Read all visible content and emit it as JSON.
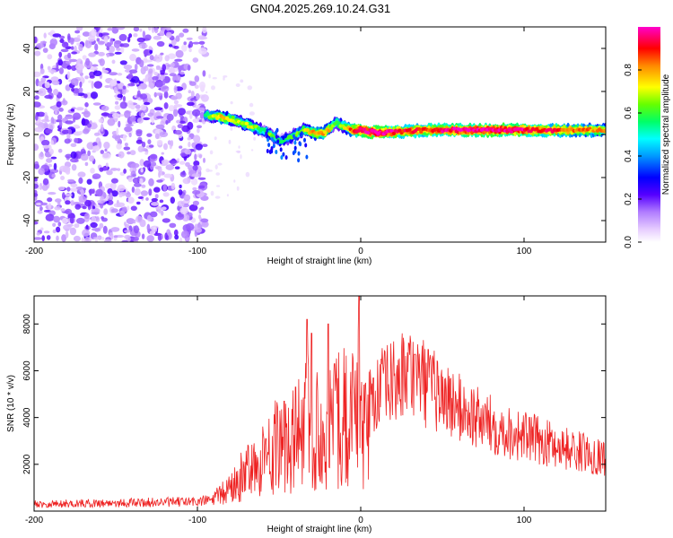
{
  "figure": {
    "title": "GN04.2025.269.10.24.G31"
  },
  "colorbar": {
    "label": "Normalized spectral amplitude",
    "ticks": [
      "0.0",
      "0.2",
      "0.4",
      "0.6",
      "0.8"
    ],
    "tick_values": [
      0.0,
      0.2,
      0.4,
      0.6,
      0.8
    ],
    "range": [
      0.0,
      1.0
    ],
    "colors": [
      "#ffffff",
      "#e6ccff",
      "#b07cff",
      "#7a1fff",
      "#3300ff",
      "#0000ff",
      "#0099ff",
      "#00ffff",
      "#00ff66",
      "#66ff00",
      "#ffff00",
      "#ff8800",
      "#ff0000",
      "#ff00cc"
    ]
  },
  "chart_data": [
    {
      "type": "heatmap",
      "title": "GN04.2025.269.10.24.G31",
      "xlabel": "Height of straight line (km)",
      "ylabel": "Frequency (Hz)",
      "xlim": [
        -200,
        150
      ],
      "ylim": [
        -50,
        50
      ],
      "xticks": [
        "-200",
        "-100",
        "0",
        "100"
      ],
      "xtick_values": [
        -200,
        -100,
        0,
        100
      ],
      "yticks": [
        "-40",
        "-20",
        "0",
        "20",
        "40"
      ],
      "ytick_values": [
        -40,
        -20,
        0,
        20,
        40
      ],
      "noise_region_x": [
        -200,
        -95
      ],
      "ridge": {
        "x": [
          -95,
          -85,
          -75,
          -68,
          -60,
          -55,
          -50,
          -45,
          -40,
          -35,
          -30,
          -25,
          -20,
          -15,
          -12,
          -8,
          -5,
          0,
          10,
          20,
          40,
          60,
          80,
          100,
          120,
          150
        ],
        "freq": [
          9,
          8,
          6,
          4,
          2,
          0,
          -3,
          -2,
          0,
          2,
          1,
          0,
          2,
          6,
          4,
          3,
          2,
          2,
          1,
          1,
          2,
          2,
          2,
          2,
          2,
          2
        ],
        "amplitude": [
          0.5,
          0.7,
          0.6,
          0.65,
          0.5,
          0.55,
          0.45,
          0.5,
          0.55,
          0.6,
          0.7,
          0.75,
          0.7,
          0.5,
          0.6,
          0.7,
          0.8,
          0.9,
          0.95,
          0.85,
          0.8,
          0.9,
          0.92,
          0.88,
          0.8,
          0.7
        ]
      }
    },
    {
      "type": "line",
      "color": "#ee2222",
      "xlabel": "Height of straight line (km)",
      "ylabel": "SNR (10 * v/v)",
      "xlim": [
        -200,
        150
      ],
      "ylim": [
        0,
        9200
      ],
      "xticks": [
        "-200",
        "-100",
        "0",
        "100"
      ],
      "xtick_values": [
        -200,
        -100,
        0,
        100
      ],
      "yticks": [
        "2000",
        "4000",
        "6000",
        "8000"
      ],
      "ytick_values": [
        2000,
        4000,
        6000,
        8000
      ],
      "envelope": {
        "x": [
          -200,
          -150,
          -100,
          -90,
          -85,
          -80,
          -75,
          -70,
          -65,
          -60,
          -55,
          -50,
          -45,
          -40,
          -35,
          -30,
          -25,
          -20,
          -15,
          -10,
          -5,
          -2,
          0,
          5,
          10,
          15,
          20,
          25,
          30,
          35,
          40,
          50,
          60,
          70,
          80,
          90,
          100,
          110,
          120,
          130,
          140,
          150
        ],
        "y": [
          300,
          350,
          400,
          500,
          700,
          1000,
          1300,
          1700,
          2000,
          2300,
          2600,
          2800,
          3000,
          3200,
          3400,
          3600,
          3700,
          3800,
          3900,
          4000,
          4100,
          4200,
          4300,
          4700,
          5000,
          5300,
          5500,
          5700,
          5900,
          5800,
          5400,
          4900,
          4400,
          4000,
          3700,
          3400,
          3200,
          3000,
          2800,
          2600,
          2450,
          2300
        ]
      },
      "spikes": [
        {
          "x": -58,
          "y": 3100
        },
        {
          "x": -47,
          "y": 4700
        },
        {
          "x": -40,
          "y": 5300
        },
        {
          "x": -33,
          "y": 8200
        },
        {
          "x": -30,
          "y": 7600
        },
        {
          "x": -20,
          "y": 8000
        },
        {
          "x": -16,
          "y": 6300
        },
        {
          "x": -1,
          "y": 9200
        },
        {
          "x": 33,
          "y": 6700
        }
      ]
    }
  ]
}
